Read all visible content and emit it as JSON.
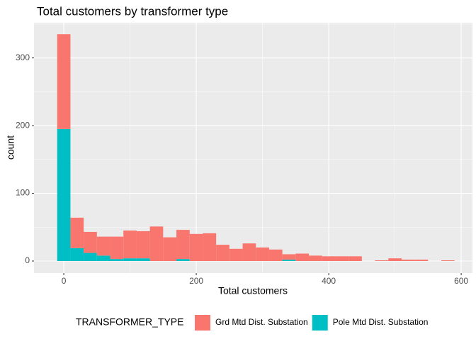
{
  "chart_data": {
    "type": "histogram",
    "title": "Total customers by transformer type",
    "x_label": "Total customers",
    "y_label": "count",
    "bins": [
      -10,
      10,
      30,
      50,
      70,
      90,
      110,
      130,
      150,
      170,
      190,
      210,
      230,
      250,
      270,
      290,
      310,
      330,
      350,
      370,
      390,
      410,
      430,
      450,
      470,
      490,
      510,
      530,
      550,
      570,
      590
    ],
    "series": [
      {
        "name": "Grd Mtd Dist. Substation",
        "color": "#F8766D",
        "values": [
          140,
          45,
          31,
          28,
          33,
          41,
          40,
          51,
          35,
          43,
          40,
          41,
          24,
          18,
          26,
          20,
          17,
          8,
          11,
          8,
          7,
          7,
          7,
          0,
          1,
          4,
          2,
          2,
          0,
          1
        ]
      },
      {
        "name": "Pole Mtd Dist. Substation",
        "color": "#00BFC4",
        "values": [
          195,
          19,
          12,
          8,
          3,
          4,
          4,
          0,
          0,
          3,
          0,
          0,
          0,
          0,
          0,
          0,
          0,
          2,
          0,
          0,
          0,
          0,
          0,
          0,
          0,
          0,
          0,
          0,
          0,
          0
        ]
      }
    ],
    "stacked": true,
    "legend_title": "TRANSFORMER_TYPE",
    "legend_position": "bottom",
    "xlim": [
      -45,
      617
    ],
    "ylim": [
      -17.8,
      352
    ],
    "xticks": [
      0,
      200,
      400,
      600
    ],
    "yticks": [
      0,
      100,
      200,
      300
    ],
    "grid": true
  }
}
